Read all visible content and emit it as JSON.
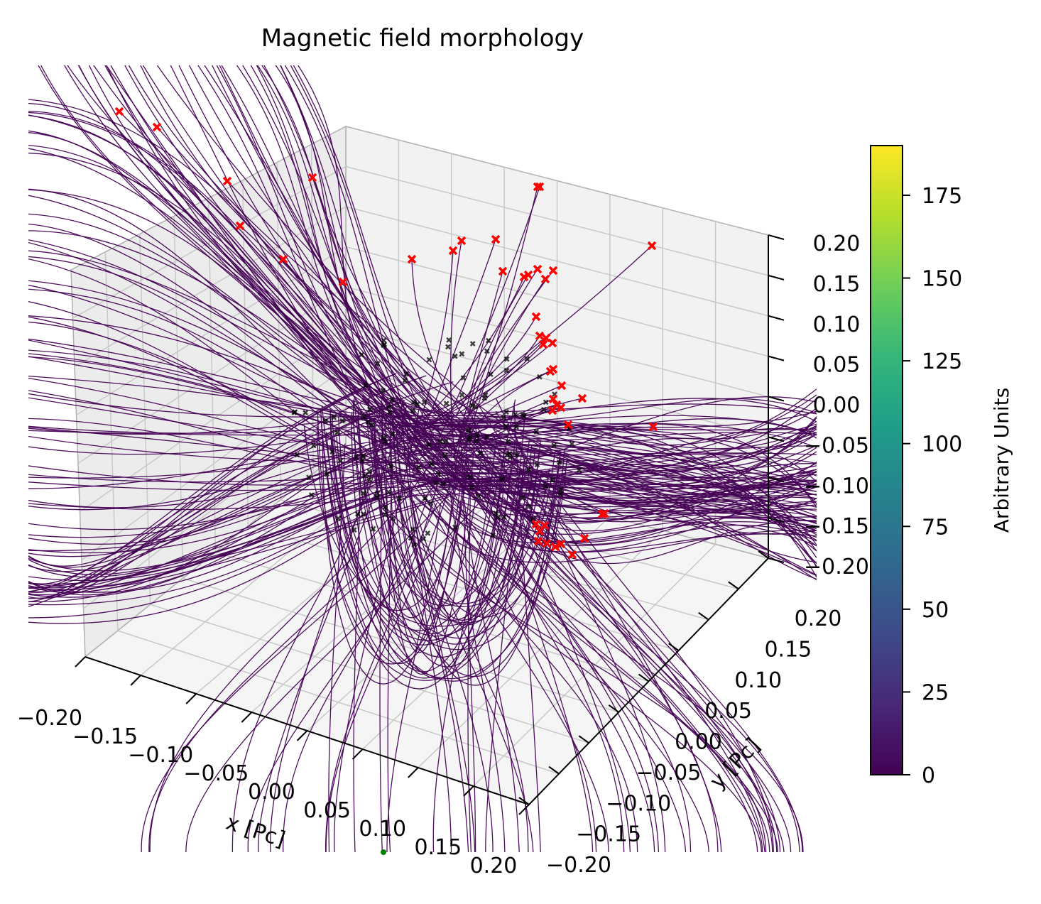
{
  "chart_data": {
    "type": "line3d",
    "title": "Magnetic field morphology",
    "axes": {
      "x": {
        "label": "x [Pc]",
        "range": [
          -0.2,
          0.2
        ],
        "ticks": [
          "−0.20",
          "−0.15",
          "−0.10",
          "−0.05",
          "0.00",
          "0.05",
          "0.10",
          "0.15",
          "0.20"
        ]
      },
      "y": {
        "label": "y [Pc]",
        "range": [
          -0.2,
          0.2
        ],
        "ticks": [
          "−0.20",
          "−0.15",
          "−0.10",
          "−0.05",
          "0.00",
          "0.05",
          "0.10",
          "0.15",
          "0.20"
        ]
      },
      "z": {
        "label": "",
        "range": [
          -0.2,
          0.2
        ],
        "ticks": [
          "−0.20",
          "−0.15",
          "−0.10",
          "−0.05",
          "0.00",
          "0.05",
          "0.10",
          "0.15",
          "0.20"
        ]
      }
    },
    "grid": true,
    "field_lines": {
      "color": "#440154",
      "seed_marker_color": "#000000",
      "end_marker_color": "#ff0000",
      "extra_marker_color": "#008000"
    },
    "colorbar": {
      "label": "Arbitrary Units",
      "colormap": "viridis",
      "range": [
        0,
        190
      ],
      "ticks": [
        {
          "value": 0,
          "label": "0"
        },
        {
          "value": 25,
          "label": "25"
        },
        {
          "value": 50,
          "label": "50"
        },
        {
          "value": 75,
          "label": "75"
        },
        {
          "value": 100,
          "label": "100"
        },
        {
          "value": 125,
          "label": "125"
        },
        {
          "value": 150,
          "label": "150"
        },
        {
          "value": 175,
          "label": "175"
        }
      ],
      "stops": [
        "#440154",
        "#482878",
        "#3e4a89",
        "#31688e",
        "#26828e",
        "#1f9e89",
        "#35b779",
        "#6ece58",
        "#b5de2b",
        "#fde725"
      ]
    }
  }
}
